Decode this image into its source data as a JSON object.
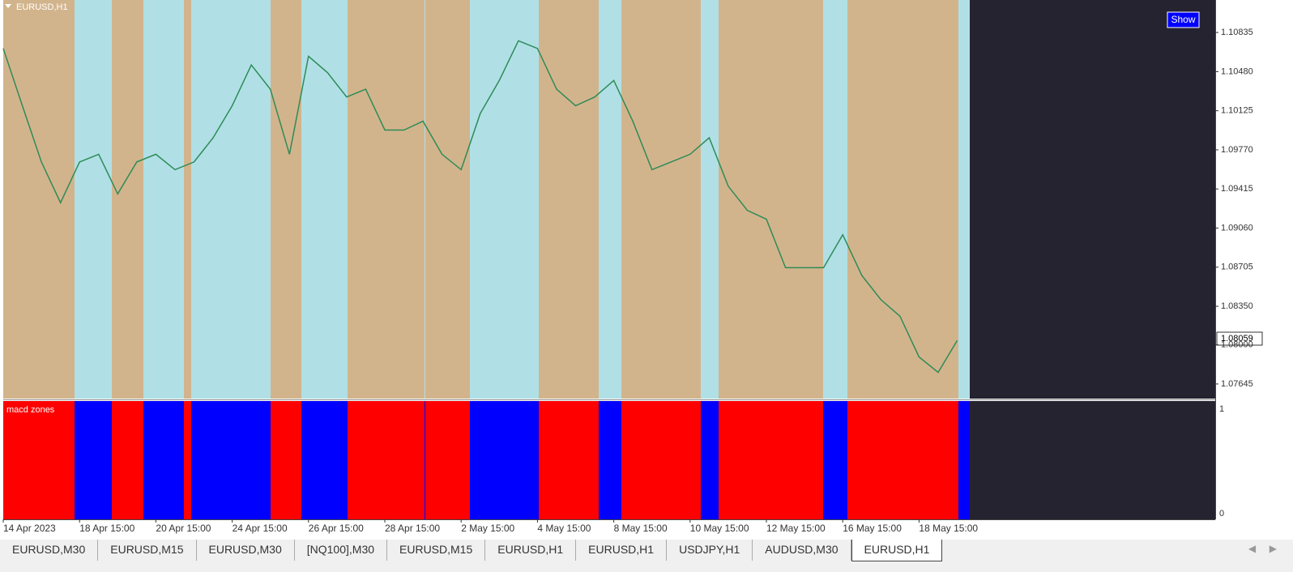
{
  "window": {
    "title": "EURUSD,H1",
    "show_button": "Show",
    "current_price": "1.08059"
  },
  "indicator": {
    "title": "macd zones",
    "scale_labels": [
      "1",
      "0"
    ]
  },
  "chart_data": {
    "type": "line",
    "color": "#2e8b57",
    "categories": [
      "14 Apr 2023",
      null,
      null,
      null,
      "18 Apr 15:00",
      null,
      null,
      null,
      "20 Apr 15:00",
      null,
      null,
      null,
      "24 Apr 15:00",
      null,
      null,
      null,
      "26 Apr 15:00",
      null,
      null,
      null,
      "28 Apr 15:00",
      null,
      null,
      null,
      "2 May 15:00",
      null,
      null,
      null,
      "4 May 15:00",
      null,
      null,
      null,
      "8 May 15:00",
      null,
      null,
      null,
      "10 May 15:00",
      null,
      null,
      null,
      "12 May 15:00",
      null,
      null,
      null,
      "16 May 15:00",
      null,
      null,
      null,
      "18 May 15:00",
      null,
      null
    ],
    "values": [
      1.1069,
      1.1017,
      1.0966,
      1.0929,
      1.0966,
      1.0973,
      1.0937,
      1.0966,
      1.0973,
      1.0959,
      1.0966,
      1.0988,
      1.1017,
      1.1054,
      1.1032,
      1.0973,
      1.1062,
      1.1047,
      1.1025,
      1.1032,
      1.0995,
      1.0995,
      1.1003,
      1.0973,
      1.0959,
      1.101,
      1.104,
      1.1076,
      1.1069,
      1.1032,
      1.1017,
      1.1025,
      1.104,
      1.1003,
      1.0959,
      1.0966,
      1.0973,
      1.0988,
      1.0944,
      1.0922,
      1.0914,
      1.087,
      1.087,
      1.087,
      1.09,
      1.0863,
      1.0841,
      1.0826,
      1.0789,
      1.0775,
      1.0804
    ],
    "ylim": [
      1.07512,
      1.1113
    ],
    "yticks": [
      1.10835,
      {
        "value": 1.1048,
        "label": "1.10480"
      },
      1.10125,
      {
        "value": 1.0977,
        "label": "1.09770"
      },
      1.09415,
      {
        "value": 1.0906,
        "label": "1.09060"
      },
      1.08705,
      {
        "value": 1.0835,
        "label": "1.08350"
      },
      {
        "value": 1.08,
        "label": "1.08000"
      },
      1.07645
    ]
  },
  "tabs": [
    {
      "label": "EURUSD,M30",
      "active": false
    },
    {
      "label": "EURUSD,M15",
      "active": false
    },
    {
      "label": "EURUSD,M30",
      "active": false
    },
    {
      "label": "[NQ100],M30",
      "active": false
    },
    {
      "label": "EURUSD,M15",
      "active": false
    },
    {
      "label": "EURUSD,H1",
      "active": false
    },
    {
      "label": "EURUSD,H1",
      "active": false
    },
    {
      "label": "USDJPY,H1",
      "active": false
    },
    {
      "label": "AUDUSD,M30",
      "active": false
    },
    {
      "label": "EURUSD,H1",
      "active": true
    }
  ]
}
